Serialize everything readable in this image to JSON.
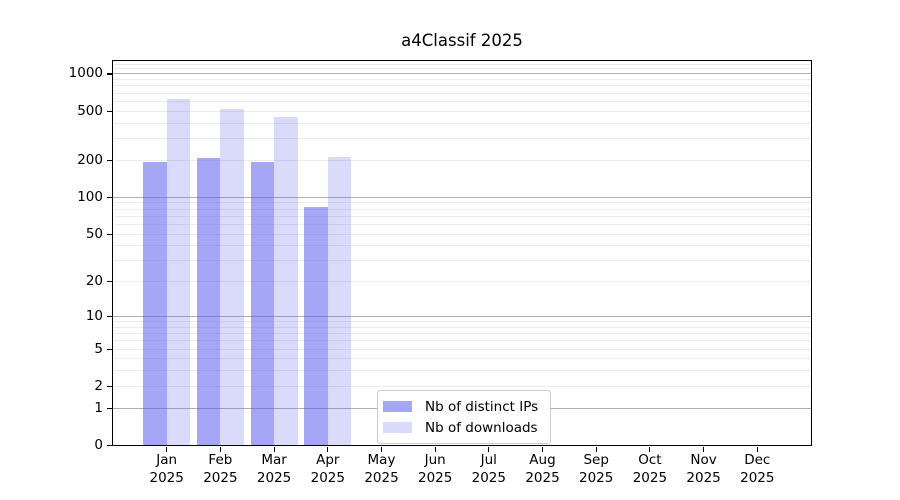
{
  "chart_data": {
    "type": "bar",
    "title": "a4Classif 2025",
    "categories": [
      "Jan 2025",
      "Feb 2025",
      "Mar 2025",
      "Apr 2025",
      "May 2025",
      "Jun 2025",
      "Jul 2025",
      "Aug 2025",
      "Sep 2025",
      "Oct 2025",
      "Nov 2025",
      "Dec 2025"
    ],
    "series": [
      {
        "name": "Nb of distinct IPs",
        "color": "rgba(85,85,238,0.52)",
        "values": [
          192,
          208,
          191,
          83,
          0,
          0,
          0,
          0,
          0,
          0,
          0,
          0
        ]
      },
      {
        "name": "Nb of downloads",
        "color": "rgba(85,85,238,0.22)",
        "values": [
          625,
          520,
          445,
          210,
          0,
          0,
          0,
          0,
          0,
          0,
          0,
          0
        ]
      }
    ],
    "xlabel": "",
    "ylabel": "",
    "yscale": "log1p",
    "ylim": [
      0,
      1260
    ],
    "yticks": [
      0,
      1,
      2,
      5,
      10,
      20,
      50,
      100,
      200,
      500,
      1000
    ],
    "grid": "horizontal; dark major lines at 1,10,100,1000; light minor log subdivisions",
    "legend_position": "inside lower-center",
    "colors": {
      "major_grid": "#b0b0b0",
      "minor_grid": "#ebebeb",
      "axis": "#000000",
      "bar_dark_flat": "#a7a7f3",
      "bar_light_flat": "#dadaf9"
    }
  }
}
